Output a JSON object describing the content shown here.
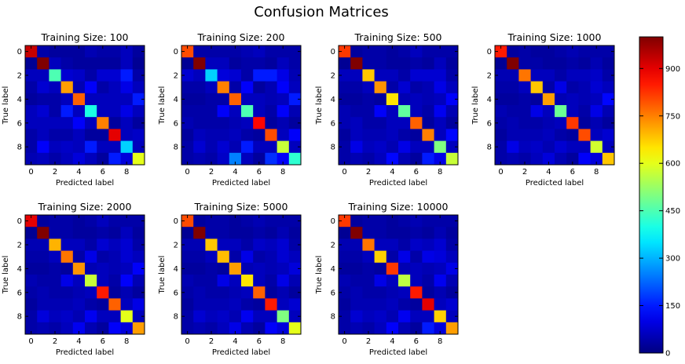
{
  "figure": {
    "title": "Confusion Matrices"
  },
  "chart_data": {
    "type": "heatmap",
    "colormap": "jet",
    "colorbar": {
      "min": 0,
      "max": 1000,
      "ticks": [
        0,
        150,
        300,
        450,
        600,
        750,
        900
      ]
    },
    "xlabel": "Predicted label",
    "ylabel": "True label",
    "xticks": [
      0,
      2,
      4,
      6,
      8
    ],
    "yticks": [
      0,
      2,
      4,
      6,
      8
    ],
    "matrices": [
      {
        "title": "Training Size: 100",
        "values": [
          [
            930,
            40,
            30,
            30,
            30,
            50,
            40,
            40,
            60,
            30
          ],
          [
            20,
            1000,
            60,
            40,
            30,
            30,
            30,
            30,
            60,
            20
          ],
          [
            60,
            60,
            450,
            80,
            70,
            40,
            80,
            80,
            150,
            40
          ],
          [
            40,
            80,
            60,
            720,
            50,
            120,
            40,
            60,
            100,
            60
          ],
          [
            30,
            40,
            40,
            60,
            780,
            60,
            60,
            60,
            60,
            150
          ],
          [
            60,
            80,
            40,
            150,
            60,
            400,
            60,
            60,
            100,
            60
          ],
          [
            60,
            60,
            60,
            60,
            120,
            60,
            750,
            30,
            60,
            30
          ],
          [
            40,
            60,
            40,
            40,
            60,
            30,
            30,
            900,
            60,
            70
          ],
          [
            40,
            120,
            60,
            70,
            60,
            150,
            60,
            60,
            330,
            60
          ],
          [
            50,
            60,
            40,
            60,
            90,
            60,
            30,
            150,
            90,
            600
          ]
        ]
      },
      {
        "title": "Training Size: 200",
        "values": [
          [
            800,
            40,
            40,
            40,
            40,
            50,
            60,
            40,
            40,
            40
          ],
          [
            20,
            1000,
            60,
            60,
            30,
            40,
            40,
            30,
            60,
            40
          ],
          [
            80,
            60,
            330,
            90,
            80,
            40,
            150,
            150,
            100,
            50
          ],
          [
            40,
            40,
            60,
            750,
            40,
            120,
            30,
            50,
            120,
            60
          ],
          [
            30,
            30,
            40,
            40,
            780,
            60,
            60,
            50,
            60,
            150
          ],
          [
            40,
            40,
            40,
            120,
            60,
            450,
            60,
            40,
            120,
            50
          ],
          [
            50,
            40,
            40,
            40,
            50,
            60,
            870,
            30,
            50,
            30
          ],
          [
            30,
            60,
            50,
            50,
            60,
            40,
            30,
            800,
            60,
            120
          ],
          [
            40,
            80,
            50,
            80,
            50,
            150,
            60,
            60,
            570,
            60
          ],
          [
            40,
            50,
            40,
            70,
            250,
            60,
            30,
            170,
            120,
            420
          ]
        ]
      },
      {
        "title": "Training Size: 500",
        "values": [
          [
            820,
            30,
            40,
            40,
            30,
            40,
            60,
            40,
            40,
            40
          ],
          [
            20,
            1000,
            40,
            40,
            30,
            30,
            40,
            30,
            60,
            30
          ],
          [
            60,
            60,
            680,
            60,
            60,
            40,
            80,
            80,
            80,
            40
          ],
          [
            40,
            40,
            60,
            730,
            40,
            80,
            40,
            50,
            100,
            60
          ],
          [
            30,
            30,
            40,
            30,
            650,
            50,
            60,
            50,
            60,
            120
          ],
          [
            50,
            40,
            40,
            120,
            60,
            470,
            60,
            40,
            110,
            50
          ],
          [
            50,
            60,
            40,
            40,
            60,
            60,
            780,
            30,
            60,
            30
          ],
          [
            30,
            60,
            50,
            50,
            60,
            40,
            30,
            750,
            60,
            130
          ],
          [
            40,
            100,
            60,
            70,
            50,
            100,
            60,
            60,
            500,
            60
          ],
          [
            40,
            50,
            40,
            60,
            130,
            50,
            30,
            150,
            100,
            570
          ]
        ]
      },
      {
        "title": "Training Size: 1000",
        "values": [
          [
            850,
            30,
            40,
            30,
            30,
            40,
            50,
            40,
            40,
            40
          ],
          [
            20,
            1000,
            40,
            40,
            30,
            30,
            40,
            30,
            50,
            30
          ],
          [
            50,
            50,
            760,
            60,
            60,
            40,
            60,
            60,
            70,
            40
          ],
          [
            40,
            40,
            60,
            680,
            40,
            100,
            40,
            50,
            80,
            60
          ],
          [
            30,
            30,
            40,
            30,
            720,
            50,
            60,
            50,
            60,
            130
          ],
          [
            50,
            40,
            40,
            100,
            60,
            480,
            60,
            40,
            100,
            50
          ],
          [
            40,
            50,
            40,
            40,
            50,
            60,
            820,
            30,
            50,
            30
          ],
          [
            30,
            50,
            50,
            50,
            60,
            40,
            30,
            800,
            60,
            80
          ],
          [
            40,
            100,
            60,
            70,
            50,
            80,
            60,
            60,
            580,
            60
          ],
          [
            40,
            50,
            40,
            60,
            90,
            50,
            30,
            120,
            90,
            680
          ]
        ]
      },
      {
        "title": "Training Size: 2000",
        "values": [
          [
            900,
            30,
            40,
            40,
            30,
            40,
            60,
            40,
            40,
            40
          ],
          [
            20,
            1000,
            40,
            40,
            30,
            30,
            40,
            30,
            60,
            30
          ],
          [
            50,
            50,
            700,
            60,
            60,
            40,
            80,
            60,
            80,
            40
          ],
          [
            40,
            40,
            60,
            760,
            40,
            100,
            40,
            50,
            80,
            60
          ],
          [
            30,
            30,
            40,
            30,
            730,
            50,
            60,
            50,
            60,
            120
          ],
          [
            50,
            40,
            40,
            100,
            60,
            570,
            60,
            40,
            120,
            50
          ],
          [
            40,
            50,
            40,
            40,
            50,
            60,
            850,
            30,
            50,
            30
          ],
          [
            30,
            50,
            50,
            50,
            60,
            40,
            30,
            780,
            60,
            100
          ],
          [
            40,
            90,
            60,
            70,
            50,
            110,
            60,
            60,
            600,
            60
          ],
          [
            40,
            50,
            40,
            60,
            110,
            50,
            30,
            120,
            90,
            720
          ]
        ]
      },
      {
        "title": "Training Size: 5000",
        "values": [
          [
            800,
            30,
            40,
            40,
            30,
            40,
            50,
            40,
            40,
            40
          ],
          [
            20,
            1000,
            40,
            40,
            30,
            30,
            40,
            30,
            50,
            30
          ],
          [
            50,
            50,
            680,
            60,
            60,
            40,
            70,
            60,
            80,
            40
          ],
          [
            40,
            40,
            60,
            690,
            40,
            100,
            40,
            50,
            80,
            60
          ],
          [
            30,
            30,
            40,
            30,
            720,
            50,
            60,
            50,
            60,
            90
          ],
          [
            50,
            40,
            40,
            100,
            60,
            650,
            60,
            40,
            100,
            50
          ],
          [
            40,
            50,
            40,
            40,
            50,
            60,
            780,
            30,
            50,
            30
          ],
          [
            30,
            50,
            50,
            50,
            60,
            40,
            30,
            850,
            60,
            80
          ],
          [
            40,
            80,
            60,
            70,
            50,
            110,
            60,
            60,
            500,
            60
          ],
          [
            40,
            50,
            40,
            60,
            100,
            50,
            30,
            120,
            90,
            600
          ]
        ]
      },
      {
        "title": "Training Size: 10000",
        "values": [
          [
            820,
            30,
            40,
            40,
            30,
            40,
            50,
            40,
            40,
            40
          ],
          [
            20,
            1000,
            40,
            40,
            30,
            30,
            40,
            30,
            50,
            30
          ],
          [
            50,
            50,
            760,
            60,
            60,
            40,
            70,
            60,
            80,
            40
          ],
          [
            40,
            40,
            60,
            670,
            40,
            100,
            40,
            100,
            90,
            60
          ],
          [
            30,
            30,
            40,
            30,
            820,
            50,
            60,
            50,
            60,
            100
          ],
          [
            50,
            40,
            40,
            100,
            60,
            560,
            60,
            40,
            110,
            50
          ],
          [
            40,
            50,
            40,
            40,
            50,
            60,
            850,
            30,
            50,
            30
          ],
          [
            30,
            50,
            50,
            50,
            60,
            40,
            30,
            900,
            60,
            80
          ],
          [
            40,
            80,
            60,
            70,
            50,
            110,
            60,
            60,
            670,
            60
          ],
          [
            40,
            50,
            40,
            60,
            120,
            50,
            30,
            150,
            90,
            720
          ]
        ]
      }
    ]
  }
}
